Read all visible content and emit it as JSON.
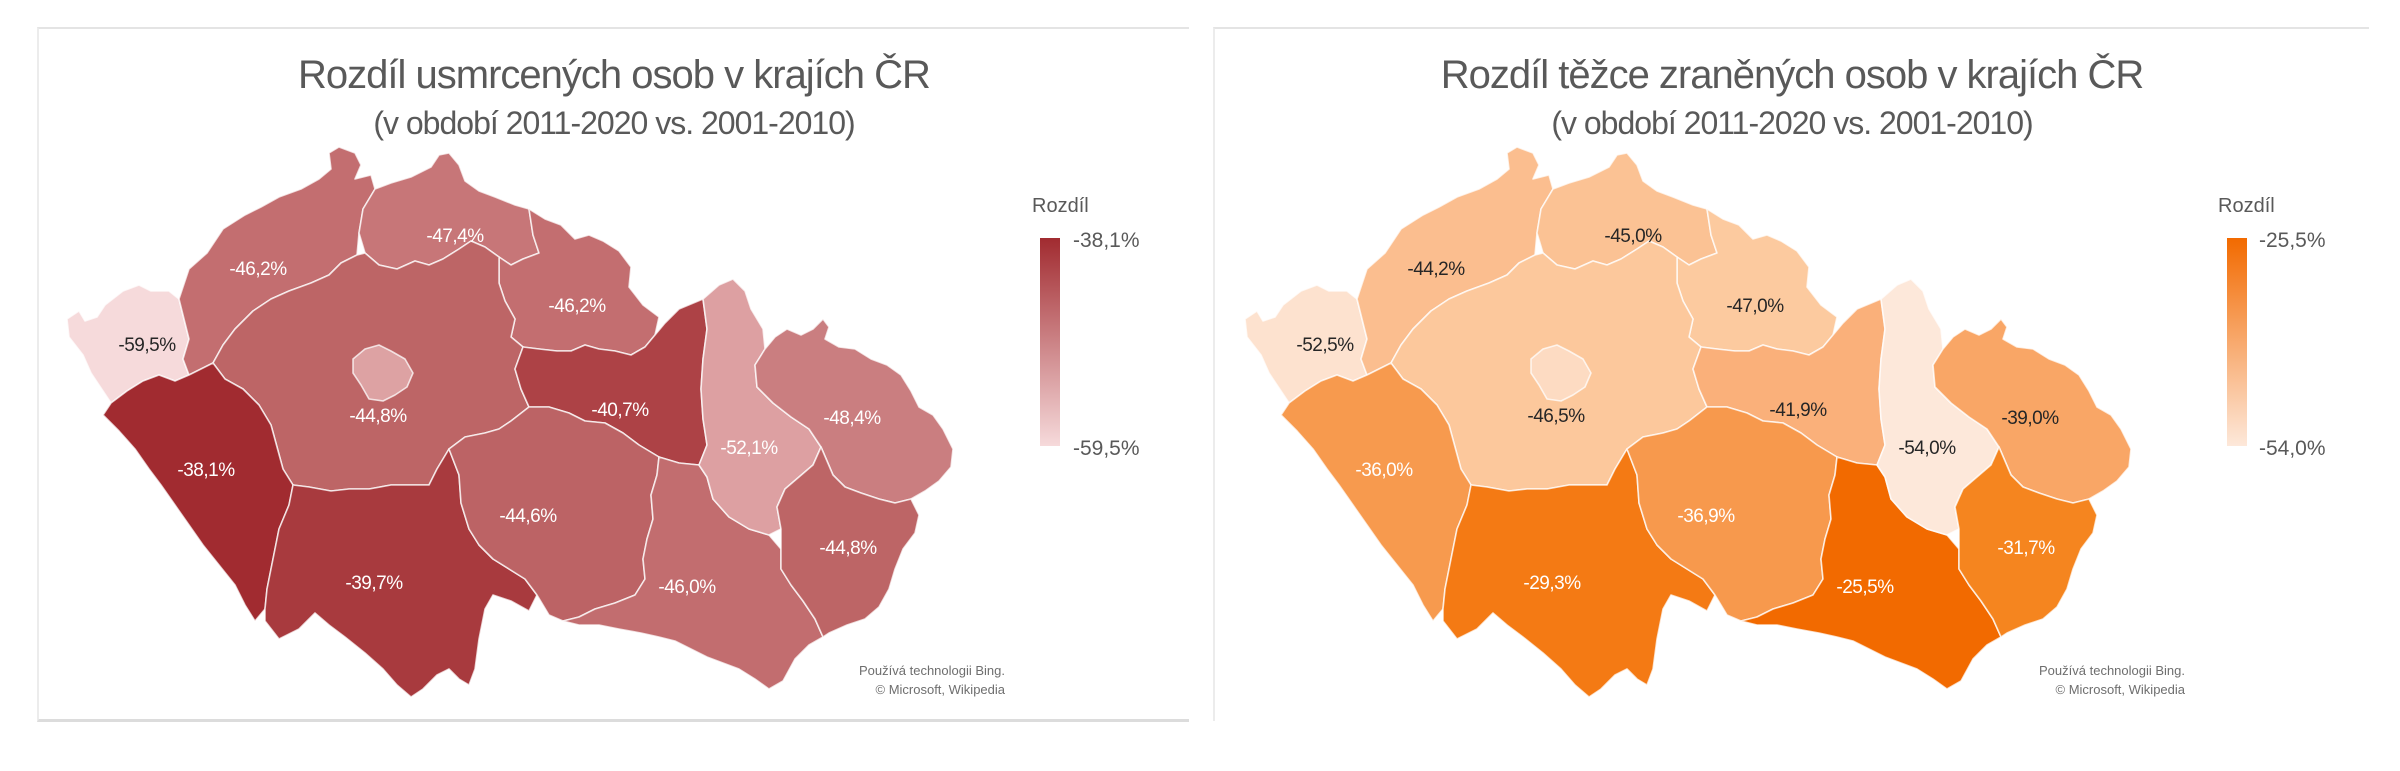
{
  "charts": [
    {
      "title": "Rozdíl usmrcených osob v krajích ČR",
      "subtitle": "(v období  2011-2020 vs. 2001-2010)",
      "legend": {
        "title": "Rozdíl",
        "max_label": "-38,1%",
        "min_label": "-59,5%",
        "max_color": "#A12B30",
        "min_color": "#F6DADB"
      },
      "credit": {
        "line1": "Používá technologii Bing.",
        "line2": "© Microsoft, Wikipedia"
      }
    },
    {
      "title": "Rozdíl těžce zraněných osob v krajích ČR",
      "subtitle": "(v období  2011-2020 vs. 2001-2010)",
      "legend": {
        "title": "Rozdíl",
        "max_label": "-25,5%",
        "min_label": "-54,0%",
        "max_color": "#F26A00",
        "min_color": "#FDE8DA"
      },
      "credit": {
        "line1": "Používá technologii Bing.",
        "line2": "© Microsoft, Wikipedia"
      }
    }
  ],
  "chart_data": [
    {
      "type": "choropleth",
      "title": "Rozdíl usmrcených osob v krajích ČR",
      "subtitle": "(v období 2011-2020 vs. 2001-2010)",
      "legend_title": "Rozdíl",
      "color_range": [
        "-59,5%",
        "-38,1%"
      ],
      "regions": [
        {
          "id": "karlovarsky",
          "label": "-59,5%",
          "value": -59.5,
          "color": "#F6DADB",
          "text": "dark"
        },
        {
          "id": "ustecky",
          "label": "-46,2%",
          "value": -46.2,
          "color": "#C36E70",
          "text": "light"
        },
        {
          "id": "liberecky",
          "label": "-47,4%",
          "value": -47.4,
          "color": "#C77678",
          "text": "light"
        },
        {
          "id": "kralovehradecky",
          "label": "-46,2%",
          "value": -46.2,
          "color": "#C36E70",
          "text": "light"
        },
        {
          "id": "stredocesky",
          "label": "-44,8%",
          "value": -44.8,
          "color": "#BD6566",
          "text": "light"
        },
        {
          "id": "praha",
          "label": "",
          "value": null,
          "color": "#DDA2A3",
          "text": "none"
        },
        {
          "id": "pardubicky",
          "label": "-40,7%",
          "value": -40.7,
          "color": "#AD4246",
          "text": "light"
        },
        {
          "id": "plzensky",
          "label": "-38,1%",
          "value": -38.1,
          "color": "#A12B30",
          "text": "light"
        },
        {
          "id": "jihocesky",
          "label": "-39,7%",
          "value": -39.7,
          "color": "#A83A3E",
          "text": "light"
        },
        {
          "id": "vysocina",
          "label": "-44,6%",
          "value": -44.6,
          "color": "#BC6365",
          "text": "light"
        },
        {
          "id": "jihomoravsky",
          "label": "-46,0%",
          "value": -46.0,
          "color": "#C26D6F",
          "text": "light"
        },
        {
          "id": "olomoucky",
          "label": "-52,1%",
          "value": -52.1,
          "color": "#DDA0A2",
          "text": "light"
        },
        {
          "id": "moravskoslezsky",
          "label": "-48,4%",
          "value": -48.4,
          "color": "#CA7E80",
          "text": "light"
        },
        {
          "id": "zlinsky",
          "label": "-44,8%",
          "value": -44.8,
          "color": "#BD6566",
          "text": "light"
        }
      ]
    },
    {
      "type": "choropleth",
      "title": "Rozdíl těžce zraněných osob v krajích ČR",
      "subtitle": "(v období 2011-2020 vs. 2001-2010)",
      "legend_title": "Rozdíl",
      "color_range": [
        "-54,0%",
        "-25,5%"
      ],
      "regions": [
        {
          "id": "karlovarsky",
          "label": "-52,5%",
          "value": -52.5,
          "color": "#FDE2CF",
          "text": "dark"
        },
        {
          "id": "ustecky",
          "label": "-44,2%",
          "value": -44.2,
          "color": "#FBBE8F",
          "text": "dark"
        },
        {
          "id": "liberecky",
          "label": "-45,0%",
          "value": -45.0,
          "color": "#FBC294",
          "text": "dark"
        },
        {
          "id": "kralovehradecky",
          "label": "-47,0%",
          "value": -47.0,
          "color": "#FCCA9F",
          "text": "dark"
        },
        {
          "id": "stredocesky",
          "label": "-46,5%",
          "value": -46.5,
          "color": "#FCC89C",
          "text": "dark"
        },
        {
          "id": "praha",
          "label": "",
          "value": null,
          "color": "#FDDBC2",
          "text": "none"
        },
        {
          "id": "pardubicky",
          "label": "-41,9%",
          "value": -41.9,
          "color": "#FAB07A",
          "text": "dark"
        },
        {
          "id": "plzensky",
          "label": "-36,0%",
          "value": -36.0,
          "color": "#F79A4E",
          "text": "light"
        },
        {
          "id": "jihocesky",
          "label": "-29,3%",
          "value": -29.3,
          "color": "#F47A14",
          "text": "light"
        },
        {
          "id": "vysocina",
          "label": "-36,9%",
          "value": -36.9,
          "color": "#F7994D",
          "text": "light"
        },
        {
          "id": "jihomoravsky",
          "label": "-25,5%",
          "value": -25.5,
          "color": "#F26A00",
          "text": "light"
        },
        {
          "id": "olomoucky",
          "label": "-54,0%",
          "value": -54.0,
          "color": "#FDE8DA",
          "text": "dark"
        },
        {
          "id": "moravskoslezsky",
          "label": "-39,0%",
          "value": -39.0,
          "color": "#F9A666",
          "text": "dark"
        },
        {
          "id": "zlinsky",
          "label": "-31,7%",
          "value": -31.7,
          "color": "#F5851F",
          "text": "light"
        }
      ]
    }
  ]
}
